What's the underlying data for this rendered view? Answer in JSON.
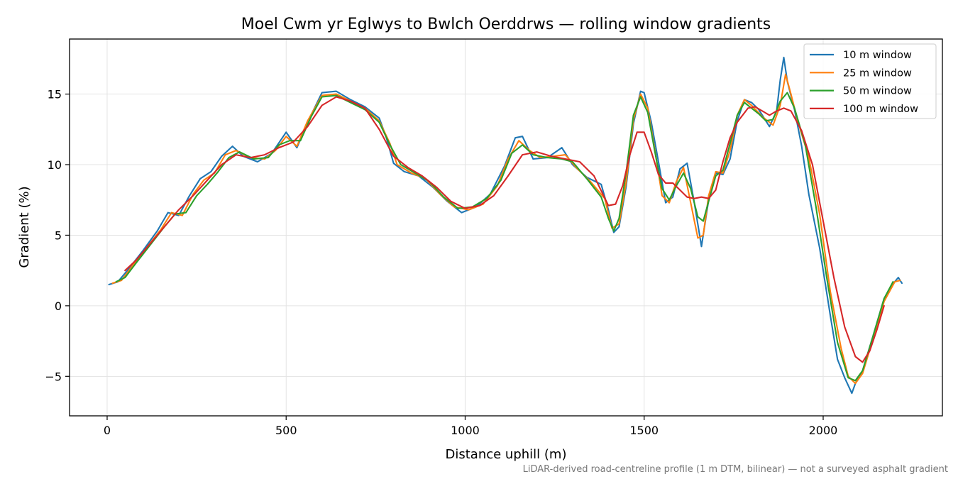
{
  "chart_data": {
    "type": "line",
    "title": "Moel Cwm yr Eglwys to Bwlch Oerddrws — rolling window gradients",
    "xlabel": "Distance uphill (m)",
    "ylabel": "Gradient (%)",
    "footnote": "LiDAR-derived road-centreline profile (1 m DTM, bilinear) — not a surveyed asphalt gradient",
    "xlim": [
      -105,
      2333
    ],
    "ylim": [
      -7.8,
      18.9
    ],
    "x_ticks": [
      0,
      500,
      1000,
      1500,
      2000
    ],
    "y_ticks": [
      -5,
      0,
      5,
      10,
      15
    ],
    "x_tick_labels": [
      "0",
      "500",
      "1000",
      "1500",
      "2000"
    ],
    "y_tick_labels": [
      "−5",
      "0",
      "5",
      "10",
      "15"
    ],
    "grid": true,
    "legend": "top-right",
    "series": [
      {
        "name": "10 m window",
        "color": "#1f77b4",
        "x": [
          5,
          30,
          60,
          100,
          140,
          170,
          200,
          230,
          260,
          290,
          320,
          350,
          380,
          420,
          460,
          500,
          530,
          560,
          600,
          640,
          680,
          720,
          760,
          780,
          800,
          830,
          870,
          910,
          950,
          990,
          1030,
          1070,
          1110,
          1140,
          1160,
          1190,
          1230,
          1270,
          1300,
          1340,
          1380,
          1400,
          1415,
          1430,
          1450,
          1470,
          1490,
          1500,
          1520,
          1540,
          1560,
          1580,
          1600,
          1620,
          1640,
          1660,
          1680,
          1700,
          1720,
          1740,
          1760,
          1780,
          1800,
          1820,
          1850,
          1870,
          1880,
          1890,
          1900,
          1920,
          1940,
          1960,
          1990,
          2020,
          2040,
          2060,
          2080,
          2090,
          2110,
          2140,
          2170,
          2190,
          2210,
          2220
        ],
        "y": [
          1.5,
          1.7,
          2.6,
          3.9,
          5.3,
          6.6,
          6.4,
          7.8,
          9.0,
          9.5,
          10.6,
          11.3,
          10.6,
          10.2,
          10.8,
          12.3,
          11.2,
          13.0,
          15.1,
          15.2,
          14.6,
          14.1,
          13.3,
          11.9,
          10.1,
          9.5,
          9.2,
          8.4,
          7.4,
          6.6,
          7.0,
          7.9,
          9.9,
          11.9,
          12.0,
          10.4,
          10.5,
          11.2,
          10.0,
          9.1,
          8.6,
          6.8,
          5.2,
          5.6,
          8.5,
          12.9,
          15.2,
          15.1,
          13.0,
          10.2,
          7.3,
          7.7,
          9.7,
          10.1,
          7.3,
          4.2,
          7.5,
          9.4,
          9.3,
          10.4,
          13.1,
          14.6,
          14.4,
          13.9,
          12.7,
          13.8,
          16.0,
          17.6,
          15.9,
          13.9,
          11.3,
          7.9,
          4.1,
          -0.7,
          -3.8,
          -5.1,
          -6.2,
          -5.5,
          -4.6,
          -2.1,
          0.5,
          1.4,
          2.0,
          1.6
        ]
      },
      {
        "name": "25 m window",
        "color": "#ff7f0e",
        "x": [
          15,
          40,
          70,
          110,
          150,
          180,
          210,
          240,
          270,
          300,
          330,
          360,
          400,
          440,
          470,
          500,
          530,
          560,
          600,
          640,
          680,
          720,
          760,
          790,
          810,
          850,
          890,
          930,
          970,
          1010,
          1050,
          1090,
          1120,
          1150,
          1180,
          1210,
          1250,
          1280,
          1310,
          1350,
          1390,
          1410,
          1430,
          1450,
          1470,
          1490,
          1510,
          1530,
          1550,
          1570,
          1590,
          1610,
          1630,
          1650,
          1665,
          1680,
          1700,
          1720,
          1740,
          1760,
          1780,
          1800,
          1830,
          1860,
          1880,
          1895,
          1910,
          1930,
          1960,
          1990,
          2020,
          2050,
          2070,
          2090,
          2110,
          2140,
          2170,
          2200,
          2215
        ],
        "y": [
          1.6,
          1.8,
          2.8,
          4.1,
          5.4,
          6.6,
          6.4,
          7.9,
          8.9,
          9.4,
          10.7,
          11.0,
          10.5,
          10.4,
          11.0,
          12.0,
          11.3,
          13.1,
          14.9,
          15.0,
          14.5,
          14.0,
          13.1,
          11.5,
          10.0,
          9.4,
          9.0,
          7.9,
          7.0,
          6.8,
          7.2,
          8.5,
          10.4,
          11.7,
          11.0,
          10.5,
          10.6,
          10.7,
          9.8,
          8.8,
          7.6,
          5.5,
          5.8,
          8.8,
          13.2,
          15.0,
          14.0,
          11.0,
          7.8,
          7.3,
          8.8,
          9.8,
          7.3,
          4.8,
          5.0,
          7.8,
          9.5,
          9.4,
          11.0,
          13.5,
          14.6,
          14.2,
          13.4,
          12.8,
          14.2,
          16.4,
          15.0,
          13.0,
          10.5,
          6.5,
          1.0,
          -3.0,
          -5.0,
          -5.5,
          -4.8,
          -2.3,
          0.3,
          1.7,
          1.8
        ]
      },
      {
        "name": "50 m window",
        "color": "#2ca02c",
        "x": [
          25,
          50,
          80,
          120,
          160,
          190,
          220,
          250,
          280,
          310,
          340,
          370,
          410,
          450,
          480,
          510,
          540,
          570,
          600,
          640,
          680,
          720,
          760,
          790,
          820,
          860,
          900,
          940,
          980,
          1020,
          1060,
          1100,
          1130,
          1160,
          1190,
          1230,
          1270,
          1300,
          1340,
          1380,
          1400,
          1415,
          1430,
          1450,
          1470,
          1490,
          1510,
          1530,
          1550,
          1570,
          1590,
          1610,
          1630,
          1650,
          1665,
          1680,
          1700,
          1720,
          1740,
          1760,
          1780,
          1800,
          1820,
          1840,
          1860,
          1880,
          1900,
          1920,
          1950,
          1980,
          2010,
          2040,
          2070,
          2090,
          2110,
          2140,
          2170,
          2195
        ],
        "y": [
          1.7,
          2.0,
          3.0,
          4.3,
          5.6,
          6.5,
          6.6,
          7.8,
          8.6,
          9.5,
          10.5,
          10.9,
          10.4,
          10.5,
          11.4,
          11.7,
          11.7,
          13.4,
          14.8,
          14.9,
          14.4,
          13.9,
          13.0,
          11.4,
          10.0,
          9.4,
          8.8,
          7.7,
          6.9,
          7.0,
          7.6,
          8.9,
          10.8,
          11.4,
          10.7,
          10.5,
          10.4,
          10.2,
          9.0,
          7.7,
          6.2,
          5.3,
          6.2,
          9.5,
          13.5,
          14.8,
          13.7,
          10.9,
          8.3,
          7.5,
          8.5,
          9.4,
          8.3,
          6.3,
          6.0,
          7.4,
          9.2,
          9.6,
          11.5,
          13.5,
          14.4,
          14.0,
          13.6,
          13.1,
          13.2,
          14.5,
          15.1,
          14.0,
          11.4,
          7.0,
          2.0,
          -2.6,
          -5.1,
          -5.3,
          -4.6,
          -2.1,
          0.5,
          1.7
        ]
      },
      {
        "name": "100 m window",
        "color": "#d62728",
        "x": [
          50,
          80,
          120,
          160,
          200,
          240,
          280,
          320,
          360,
          400,
          440,
          480,
          520,
          560,
          600,
          640,
          680,
          720,
          760,
          800,
          840,
          880,
          920,
          960,
          1000,
          1040,
          1080,
          1120,
          1160,
          1200,
          1240,
          1280,
          1320,
          1360,
          1400,
          1420,
          1440,
          1460,
          1480,
          1500,
          1520,
          1540,
          1560,
          1580,
          1600,
          1620,
          1640,
          1660,
          1680,
          1700,
          1720,
          1740,
          1760,
          1790,
          1810,
          1830,
          1850,
          1870,
          1890,
          1910,
          1940,
          1970,
          2000,
          2030,
          2060,
          2090,
          2110,
          2130,
          2150,
          2170
        ],
        "y": [
          2.5,
          3.2,
          4.4,
          5.6,
          6.8,
          7.8,
          8.9,
          10.0,
          10.7,
          10.5,
          10.7,
          11.2,
          11.6,
          12.7,
          14.2,
          14.8,
          14.5,
          14.0,
          12.5,
          10.6,
          9.8,
          9.2,
          8.4,
          7.4,
          6.9,
          7.1,
          7.8,
          9.2,
          10.7,
          10.9,
          10.6,
          10.4,
          10.2,
          9.2,
          7.1,
          7.2,
          8.5,
          10.7,
          12.3,
          12.3,
          10.9,
          9.3,
          8.7,
          8.7,
          8.2,
          7.7,
          7.6,
          7.7,
          7.6,
          8.2,
          10.2,
          11.9,
          13.0,
          14.0,
          14.1,
          13.8,
          13.5,
          13.8,
          14.0,
          13.8,
          12.4,
          10.0,
          6.0,
          2.0,
          -1.5,
          -3.6,
          -4.0,
          -3.2,
          -1.7,
          0.0
        ]
      }
    ]
  }
}
